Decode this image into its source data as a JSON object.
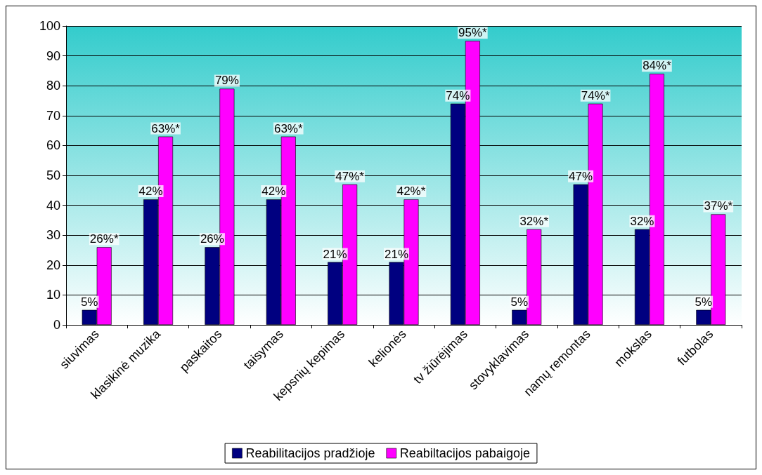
{
  "chart_data": {
    "type": "bar",
    "categories": [
      "siuvimas",
      "klasikinė muzika",
      "paskaitos",
      "taisymas",
      "kepsnių kepimas",
      "kelionės",
      "tv žiūrėjimas",
      "stovyklavimas",
      "namų remontas",
      "mokslas",
      "futbolas"
    ],
    "series": [
      {
        "name": "Reabilitacijos pradžioje",
        "color": "#000080",
        "values": [
          5,
          42,
          26,
          42,
          21,
          21,
          74,
          5,
          47,
          32,
          5
        ],
        "value_labels": [
          "5%",
          "42%",
          "26%",
          "42%",
          "21%",
          "21%",
          "74%",
          "5%",
          "47%",
          "32%",
          "5%"
        ]
      },
      {
        "name": "Reabiltacijos pabaigoje",
        "color": "#ff00ff",
        "values": [
          26,
          63,
          79,
          63,
          47,
          42,
          95,
          32,
          74,
          84,
          37
        ],
        "value_labels": [
          "26%*",
          "63%*",
          "79%",
          "63%*",
          "47%*",
          "42%*",
          "95%*",
          "32%*",
          "74%*",
          "84%*",
          "37%*"
        ]
      }
    ],
    "ylim": [
      0,
      100
    ],
    "yticks": [
      0,
      10,
      20,
      30,
      40,
      50,
      60,
      70,
      80,
      90,
      100
    ],
    "grid": "y",
    "legend": "bottom"
  }
}
